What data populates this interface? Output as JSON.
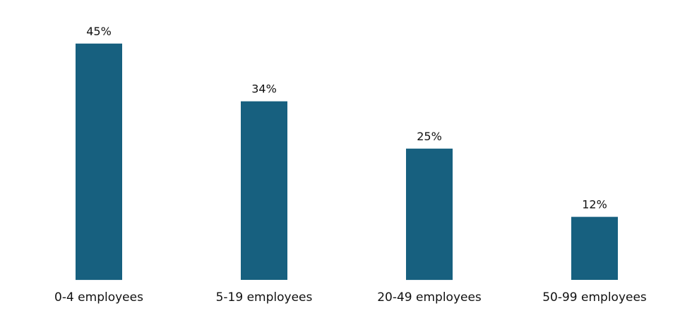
{
  "chart_data": {
    "type": "bar",
    "categories": [
      "0-4 employees",
      "5-19 employees",
      "20-49 employees",
      "50-99 employees"
    ],
    "values": [
      45,
      34,
      25,
      12
    ],
    "value_labels": [
      "45%",
      "34%",
      "25%",
      "12%"
    ],
    "unit": "%",
    "title": "",
    "xlabel": "",
    "ylabel": "",
    "ylim": [
      0,
      50
    ],
    "grid": false,
    "legend": "none",
    "bar_color": "#17607f"
  }
}
